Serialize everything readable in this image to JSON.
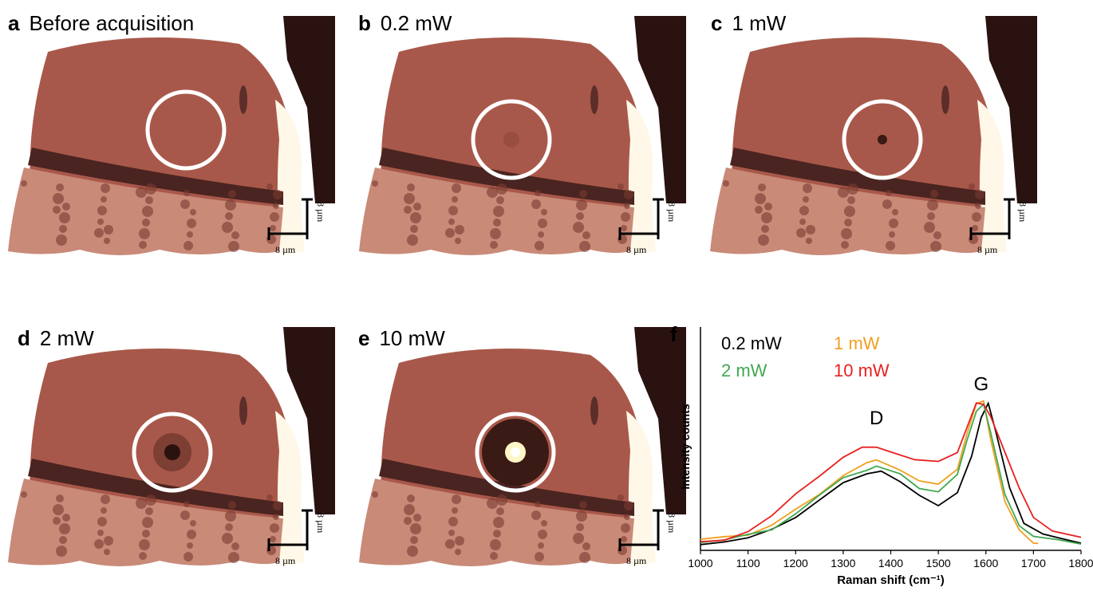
{
  "panels": [
    {
      "letter": "a",
      "title": "Before acquisition",
      "scale_h": "8 µm",
      "scale_v": "8 µm",
      "spot": "none"
    },
    {
      "letter": "b",
      "title": "0.2 mW",
      "scale_h": "8 µm",
      "scale_v": "8 µm",
      "spot": "faint"
    },
    {
      "letter": "c",
      "title": "1 mW",
      "scale_h": "8 µm",
      "scale_v": "8 µm",
      "spot": "dot"
    },
    {
      "letter": "d",
      "title": "2 mW",
      "scale_h": "8 µm",
      "scale_v": "8 µm",
      "spot": "dark"
    },
    {
      "letter": "e",
      "title": "10 mW",
      "scale_h": "8 µm",
      "scale_v": "8 µm",
      "spot": "burn"
    }
  ],
  "colors": {
    "tissue": "#a8584a",
    "tissue_dark": "#7a3a30",
    "band": "#4a2420",
    "porous": "#c98a78",
    "corner": "#2a1210",
    "circle": "#ffffff"
  },
  "chart_panel_letter": "f",
  "chart_data": {
    "type": "line",
    "xlabel": "Raman shift (cm⁻¹)",
    "ylabel": "Intensity counts",
    "xlim": [
      1000,
      1800
    ],
    "xticks": [
      1000,
      1100,
      1200,
      1300,
      1400,
      1500,
      1600,
      1700,
      1800
    ],
    "ylim": [
      0,
      1
    ],
    "annotations": [
      {
        "text": "D",
        "x": 1370,
        "y": 0.8
      },
      {
        "text": "G",
        "x": 1590,
        "y": 1.03
      }
    ],
    "series": [
      {
        "name": "0.2 mW",
        "color": "#000000",
        "x": [
          1000,
          1050,
          1100,
          1150,
          1200,
          1250,
          1300,
          1350,
          1380,
          1420,
          1460,
          1500,
          1540,
          1570,
          1590,
          1605,
          1620,
          1650,
          1680,
          1720,
          1760,
          1800
        ],
        "y": [
          0.04,
          0.05,
          0.07,
          0.12,
          0.22,
          0.33,
          0.44,
          0.52,
          0.53,
          0.45,
          0.35,
          0.3,
          0.38,
          0.62,
          0.9,
          0.99,
          0.8,
          0.4,
          0.18,
          0.1,
          0.06,
          0.05
        ]
      },
      {
        "name": "1 mW",
        "color": "#f0a020",
        "x": [
          1000,
          1050,
          1100,
          1150,
          1200,
          1250,
          1300,
          1350,
          1370,
          1420,
          1460,
          1500,
          1540,
          1560,
          1580,
          1595,
          1610,
          1640,
          1670,
          1700,
          1710
        ],
        "y": [
          0.06,
          0.07,
          0.1,
          0.16,
          0.26,
          0.38,
          0.5,
          0.58,
          0.59,
          0.54,
          0.46,
          0.43,
          0.55,
          0.78,
          0.98,
          0.99,
          0.75,
          0.32,
          0.12,
          0.05,
          0.04
        ]
      },
      {
        "name": "2 mW",
        "color": "#40a850",
        "x": [
          1000,
          1050,
          1100,
          1150,
          1200,
          1250,
          1300,
          1350,
          1370,
          1420,
          1460,
          1500,
          1540,
          1560,
          1580,
          1595,
          1610,
          1640,
          1670,
          1700,
          1750,
          1800
        ],
        "y": [
          0.05,
          0.06,
          0.09,
          0.14,
          0.24,
          0.36,
          0.47,
          0.54,
          0.56,
          0.5,
          0.42,
          0.39,
          0.5,
          0.72,
          0.94,
          0.98,
          0.78,
          0.38,
          0.16,
          0.08,
          0.05,
          0.04
        ]
      },
      {
        "name": "10 mW",
        "color": "#e82020",
        "x": [
          1000,
          1050,
          1100,
          1150,
          1200,
          1250,
          1300,
          1340,
          1370,
          1400,
          1450,
          1500,
          1540,
          1560,
          1580,
          1595,
          1610,
          1640,
          1670,
          1700,
          1740,
          1800
        ],
        "y": [
          0.04,
          0.07,
          0.12,
          0.22,
          0.36,
          0.5,
          0.62,
          0.68,
          0.7,
          0.66,
          0.6,
          0.58,
          0.66,
          0.82,
          0.98,
          0.99,
          0.9,
          0.65,
          0.4,
          0.22,
          0.12,
          0.07
        ]
      }
    ]
  }
}
